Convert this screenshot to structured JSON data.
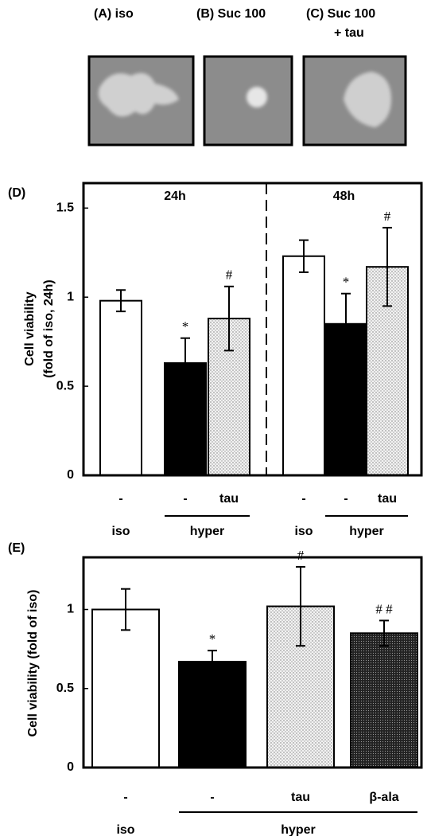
{
  "images": [
    {
      "label": [
        "(A) iso"
      ]
    },
    {
      "label": [
        "(B) Suc 100"
      ]
    },
    {
      "label": [
        "(C) Suc 100",
        "+ tau"
      ]
    }
  ],
  "chart_data": [
    {
      "type": "bar",
      "panel_label": "(D)",
      "ylabel": [
        "Cell viability",
        "(fold of iso, 24h)"
      ],
      "ylim": [
        0,
        1.64
      ],
      "yticks": [
        0,
        0.5,
        1,
        1.5
      ],
      "panels": [
        {
          "title": "24h",
          "categories": [
            "-",
            "-",
            "tau"
          ],
          "conditions": [
            "iso",
            "hyper",
            "hyper"
          ],
          "values": [
            0.98,
            0.63,
            0.88
          ],
          "errors": [
            0.06,
            0.14,
            0.18
          ],
          "fills": [
            "white",
            "black",
            "light-stipple"
          ],
          "annotations": [
            null,
            "*",
            "#"
          ]
        },
        {
          "title": "48h",
          "categories": [
            "-",
            "-",
            "tau"
          ],
          "conditions": [
            "iso",
            "hyper",
            "hyper"
          ],
          "values": [
            1.23,
            0.85,
            1.17
          ],
          "errors": [
            0.09,
            0.17,
            0.22
          ],
          "fills": [
            "white",
            "black",
            "light-stipple"
          ],
          "annotations": [
            null,
            "*",
            "#"
          ]
        }
      ]
    },
    {
      "type": "bar",
      "panel_label": "(E)",
      "ylabel": [
        "Cell viability (fold of iso)"
      ],
      "ylim": [
        0,
        1.33
      ],
      "yticks": [
        0,
        0.5,
        1
      ],
      "panels": [
        {
          "categories": [
            "-",
            "-",
            "tau",
            "β-ala"
          ],
          "conditions": [
            "iso",
            "hyper",
            "hyper",
            "hyper"
          ],
          "values": [
            1.0,
            0.67,
            1.02,
            0.85
          ],
          "errors": [
            0.13,
            0.07,
            0.25,
            0.08
          ],
          "fills": [
            "white",
            "black",
            "light-stipple",
            "dark-stipple"
          ],
          "annotations": [
            null,
            "*",
            "#",
            "# #"
          ]
        }
      ]
    }
  ]
}
